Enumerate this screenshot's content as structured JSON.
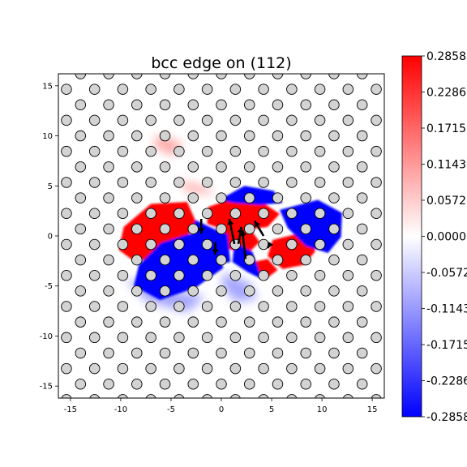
{
  "chart_data": {
    "type": "heatmap",
    "title": "bcc edge on (112)",
    "xlabel": "",
    "ylabel": "",
    "xlim": [
      -16.2,
      16.2
    ],
    "ylim": [
      -16.2,
      16.2
    ],
    "x_ticks": [
      "-15",
      "-10",
      "-5",
      "0",
      "5",
      "10",
      "15"
    ],
    "y_ticks": [
      "15",
      "10",
      "5",
      "0",
      "-5",
      "-10",
      "-15"
    ],
    "grid": false,
    "colormap": "bwr",
    "colorbar": {
      "min": -0.2858,
      "max": 0.2858,
      "ticks": [
        "0.2858",
        "0.2286",
        "0.1715",
        "0.1143",
        "0.0572",
        "0.0000",
        "-0.0572",
        "-0.1143",
        "-0.1715",
        "-0.2286",
        "-0.2858"
      ]
    },
    "colors": {
      "positive": "#ff0000",
      "negative": "#0000ff",
      "atom_fill": "#d3d3d3",
      "atom_edge": "#000000"
    },
    "lattice": {
      "a1": [
        2.8,
        0.0
      ],
      "a2": [
        1.4,
        1.55
      ],
      "shift_y": 0.7
    },
    "regions": [
      {
        "sign": "positive",
        "points": [
          [
            -9.7,
            0.9
          ],
          [
            -7.0,
            3.2
          ],
          [
            -3.4,
            3.4
          ],
          [
            -2.3,
            0.9
          ],
          [
            -4.0,
            -0.3
          ],
          [
            -6.5,
            -2.2
          ],
          [
            -8.7,
            -2.5
          ],
          [
            -10.2,
            -1.4
          ]
        ]
      },
      {
        "sign": "positive",
        "points": [
          [
            -1.3,
            2.9
          ],
          [
            1.6,
            3.9
          ],
          [
            4.3,
            3.2
          ],
          [
            5.8,
            2.2
          ],
          [
            4.6,
            0.9
          ],
          [
            2.3,
            0.6
          ],
          [
            0.6,
            0.5
          ],
          [
            -1.4,
            1.2
          ]
        ]
      },
      {
        "sign": "positive",
        "points": [
          [
            0.2,
            0.6
          ],
          [
            0.7,
            -1.3
          ],
          [
            2.6,
            -1.8
          ],
          [
            3.8,
            -0.6
          ],
          [
            2.8,
            0.8
          ]
        ]
      },
      {
        "sign": "positive",
        "points": [
          [
            5.1,
            -0.4
          ],
          [
            9.1,
            0.6
          ],
          [
            9.3,
            -1.6
          ],
          [
            8.2,
            -2.9
          ],
          [
            6.1,
            -3.3
          ],
          [
            4.6,
            -2.0
          ]
        ]
      },
      {
        "sign": "positive",
        "points": [
          [
            3.2,
            -2.6
          ],
          [
            4.3,
            -4.4
          ],
          [
            5.6,
            -3.4
          ],
          [
            4.6,
            -2.3
          ]
        ]
      },
      {
        "sign": "negative",
        "points": [
          [
            -8.2,
            -2.9
          ],
          [
            -6.0,
            -0.7
          ],
          [
            -3.2,
            0.2
          ],
          [
            -0.6,
            -0.4
          ],
          [
            0.2,
            -3.2
          ],
          [
            -2.6,
            -5.2
          ],
          [
            -6.1,
            -6.4
          ],
          [
            -8.7,
            -5.0
          ]
        ]
      },
      {
        "sign": "negative",
        "points": [
          [
            -2.6,
            1.6
          ],
          [
            -0.3,
            0.5
          ],
          [
            0.6,
            0.2
          ],
          [
            0.9,
            -2.6
          ],
          [
            -1.3,
            -3.0
          ],
          [
            -3.3,
            -1.2
          ]
        ]
      },
      {
        "sign": "negative",
        "points": [
          [
            -0.2,
            3.6
          ],
          [
            2.3,
            5.0
          ],
          [
            5.2,
            4.5
          ],
          [
            6.1,
            3.3
          ],
          [
            3.8,
            3.1
          ],
          [
            1.3,
            3.3
          ]
        ]
      },
      {
        "sign": "negative",
        "points": [
          [
            5.8,
            2.6
          ],
          [
            9.6,
            3.6
          ],
          [
            12.0,
            2.3
          ],
          [
            11.9,
            -0.1
          ],
          [
            10.6,
            -1.7
          ],
          [
            8.4,
            -1.0
          ],
          [
            6.6,
            0.8
          ]
        ]
      },
      {
        "sign": "negative",
        "points": [
          [
            1.3,
            -0.6
          ],
          [
            3.1,
            -1.6
          ],
          [
            4.0,
            -4.3
          ],
          [
            2.6,
            -3.6
          ],
          [
            1.1,
            -2.6
          ]
        ]
      }
    ],
    "faint_regions": [
      {
        "sign": "positive",
        "points": [
          [
            -6.3,
            10.1
          ],
          [
            -3.8,
            9.2
          ],
          [
            -4.8,
            8.0
          ],
          [
            -6.8,
            9.0
          ]
        ]
      },
      {
        "sign": "positive",
        "points": [
          [
            -4.6,
            5.6
          ],
          [
            -1.6,
            4.9
          ],
          [
            -0.6,
            4.2
          ],
          [
            -3.2,
            4.4
          ]
        ]
      },
      {
        "sign": "negative",
        "points": [
          [
            -9.6,
            -4.2
          ],
          [
            -7.4,
            -6.6
          ],
          [
            -3.3,
            -7.6
          ],
          [
            -1.6,
            -6.0
          ],
          [
            -5.1,
            -5.4
          ]
        ]
      },
      {
        "sign": "negative",
        "points": [
          [
            0.3,
            -3.6
          ],
          [
            2.8,
            -4.7
          ],
          [
            3.6,
            -6.3
          ],
          [
            1.4,
            -6.6
          ],
          [
            0.0,
            -5.0
          ]
        ]
      }
    ],
    "arrows": [
      {
        "x": -2.0,
        "y": 1.7,
        "dx": 0.0,
        "dy": -1.5
      },
      {
        "x": -0.6,
        "y": -0.6,
        "dx": 0.0,
        "dy": -1.3
      },
      {
        "x": 1.3,
        "y": -0.8,
        "dx": -0.5,
        "dy": 2.5
      },
      {
        "x": 2.4,
        "y": -2.3,
        "dx": -0.3,
        "dy": 2.9
      },
      {
        "x": 1.7,
        "y": -0.8,
        "dx": 0.3,
        "dy": 1.7
      },
      {
        "x": 4.2,
        "y": 0.0,
        "dx": -0.9,
        "dy": 1.5
      },
      {
        "x": 4.9,
        "y": -0.7,
        "dx": -0.3,
        "dy": -0.5
      }
    ]
  }
}
